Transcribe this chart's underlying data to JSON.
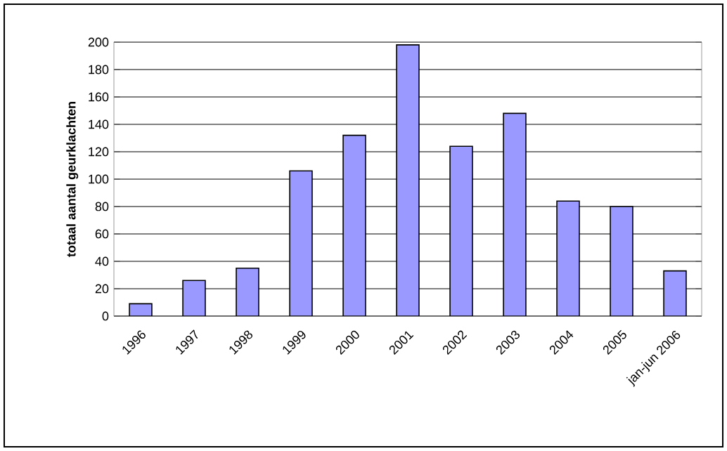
{
  "chart_data": {
    "type": "bar",
    "ylabel": "totaal aantal geurklachten",
    "categories": [
      "1996",
      "1997",
      "1998",
      "1999",
      "2000",
      "2001",
      "2002",
      "2003",
      "2004",
      "2005",
      "jan-jun 2006"
    ],
    "values": [
      9,
      26,
      35,
      106,
      132,
      198,
      124,
      148,
      84,
      80,
      33
    ],
    "color": "#9999ff",
    "ylim": [
      0,
      200
    ],
    "yticks": [
      0,
      20,
      40,
      60,
      80,
      100,
      120,
      140,
      160,
      180,
      200
    ],
    "grid": "y"
  }
}
